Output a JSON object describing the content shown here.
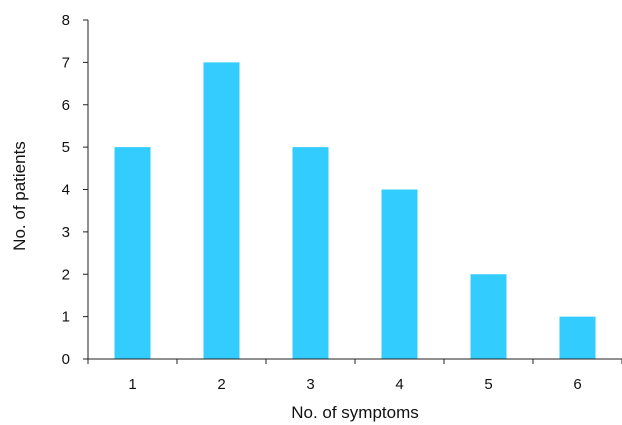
{
  "chart_data": {
    "type": "bar",
    "categories": [
      "1",
      "2",
      "3",
      "4",
      "5",
      "6"
    ],
    "values": [
      5,
      7,
      5,
      4,
      2,
      1
    ],
    "xlabel": "No. of symptoms",
    "ylabel": "No. of patients",
    "ylim": [
      0,
      8
    ],
    "yticks": [
      0,
      1,
      2,
      3,
      4,
      5,
      6,
      7,
      8
    ],
    "bar_color": "#33CCFF",
    "grid": false,
    "legend": "none"
  }
}
